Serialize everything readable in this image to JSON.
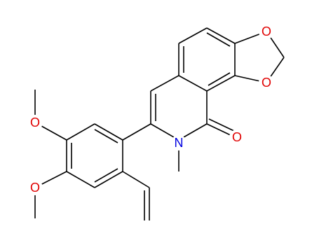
{
  "atoms": [
    {
      "label": "O"
    },
    {
      "label": "O"
    },
    {
      "label": "O"
    },
    {
      "label": "N"
    },
    {
      "label": "O"
    },
    {
      "label": "O"
    }
  ]
}
